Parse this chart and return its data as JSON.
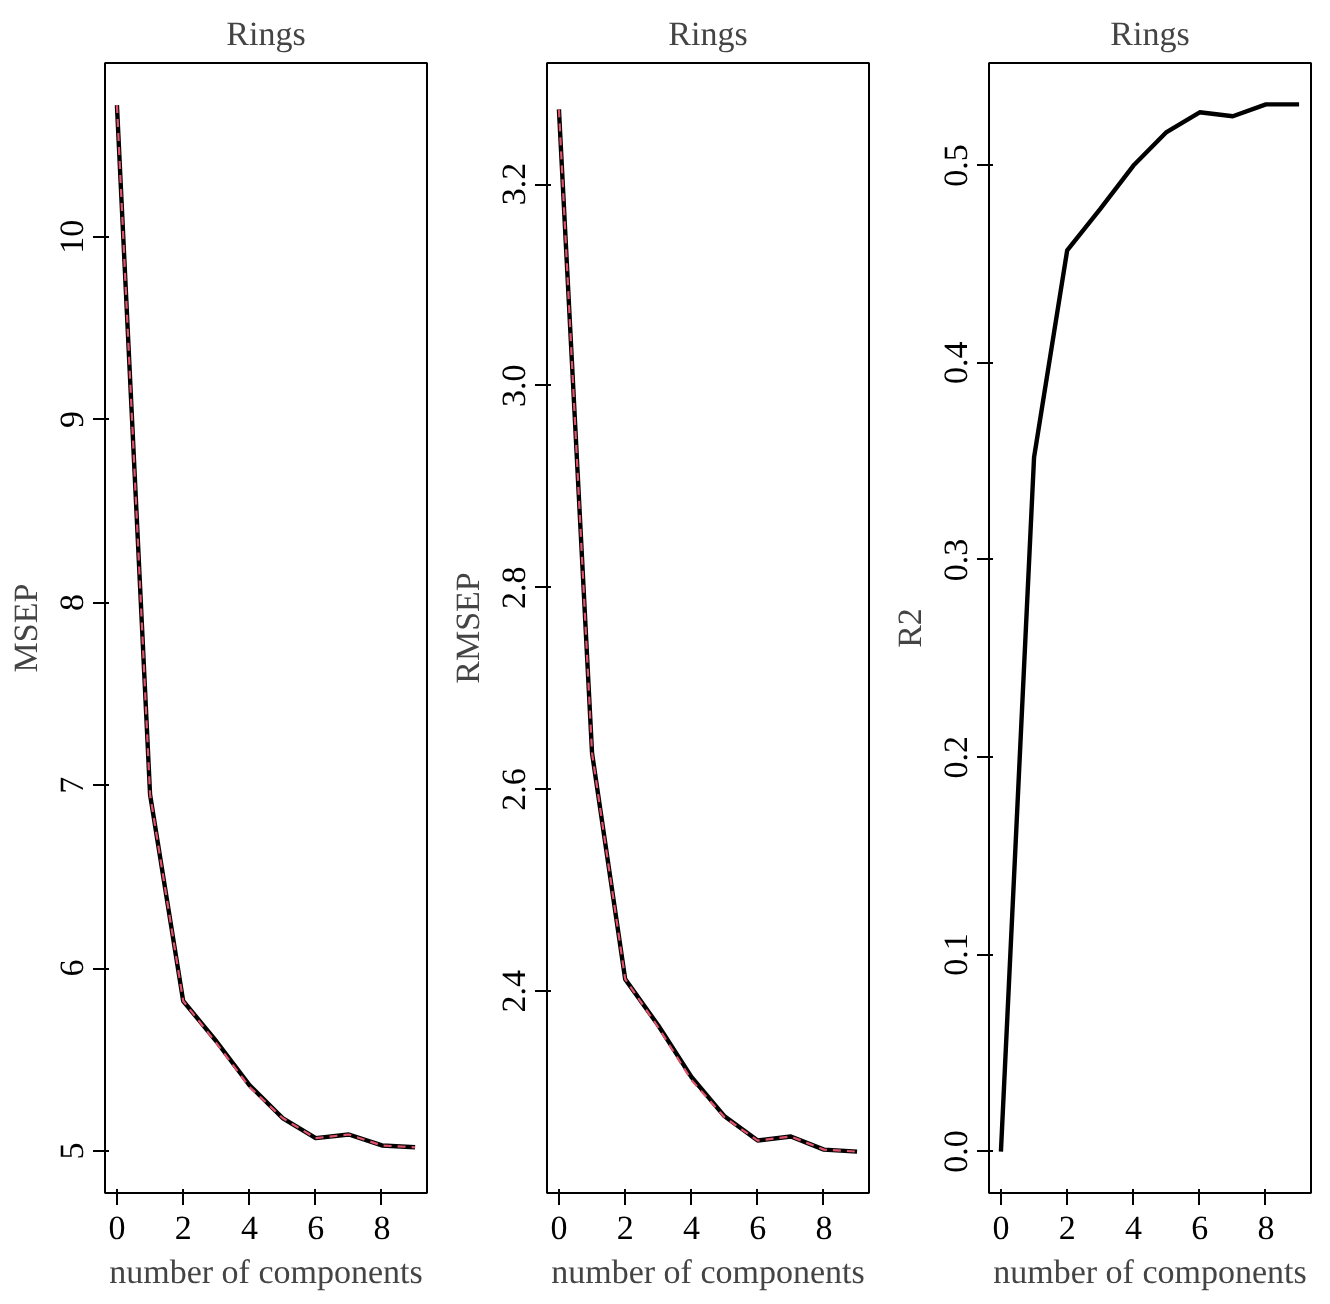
{
  "chart_data": [
    {
      "type": "line",
      "title": "Rings",
      "xlabel": "number of components",
      "ylabel": "MSEP",
      "x": [
        0,
        1,
        2,
        3,
        4,
        5,
        6,
        7,
        8,
        9
      ],
      "xlim": [
        -0.36,
        9.36
      ],
      "xticks": [
        0,
        2,
        4,
        6,
        8
      ],
      "ylim": [
        4.77,
        10.95
      ],
      "yticks": [
        5,
        6,
        7,
        8,
        9,
        10
      ],
      "grid": false,
      "series": [
        {
          "color": "#000000",
          "line_style": "solid",
          "values": [
            10.72,
            6.95,
            5.82,
            5.6,
            5.36,
            5.18,
            5.07,
            5.09,
            5.03,
            5.02
          ]
        },
        {
          "color": "#df536b",
          "line_style": "dashed",
          "values": [
            10.72,
            6.95,
            5.82,
            5.59,
            5.35,
            5.18,
            5.07,
            5.09,
            5.03,
            5.02
          ]
        }
      ]
    },
    {
      "type": "line",
      "title": "Rings",
      "xlabel": "number of components",
      "ylabel": "RMSEP",
      "x": [
        0,
        1,
        2,
        3,
        4,
        5,
        6,
        7,
        8,
        9
      ],
      "xlim": [
        -0.36,
        9.36
      ],
      "xticks": [
        0,
        2,
        4,
        6,
        8
      ],
      "ylim": [
        2.2,
        3.32
      ],
      "yticks": [
        2.4,
        {
          "value": 2.6,
          "label": "2.6"
        },
        {
          "value": 2.8,
          "label": "2.8"
        },
        {
          "value": 3.0,
          "label": "3.0"
        },
        3.2
      ],
      "grid": false,
      "series": [
        {
          "color": "#000000",
          "line_style": "solid",
          "values": [
            3.274,
            2.636,
            2.412,
            2.366,
            2.315,
            2.276,
            2.252,
            2.256,
            2.243,
            2.241
          ]
        },
        {
          "color": "#df536b",
          "line_style": "dashed",
          "values": [
            3.274,
            2.636,
            2.412,
            2.364,
            2.312,
            2.275,
            2.252,
            2.256,
            2.243,
            2.241
          ]
        }
      ]
    },
    {
      "type": "line",
      "title": "Rings",
      "xlabel": "number of components",
      "ylabel": "R2",
      "x": [
        0,
        1,
        2,
        3,
        4,
        5,
        6,
        7,
        8,
        9
      ],
      "xlim": [
        -0.36,
        9.36
      ],
      "xticks": [
        0,
        2,
        4,
        6,
        8
      ],
      "ylim": [
        -0.021,
        0.552
      ],
      "yticks": [
        {
          "value": 0,
          "label": "0.0"
        },
        0.1,
        0.2,
        0.3,
        0.4,
        0.5
      ],
      "grid": false,
      "series": [
        {
          "color": "#000000",
          "line_style": "solid",
          "values": [
            0,
            0.352,
            0.457,
            0.478,
            0.5,
            0.517,
            0.527,
            0.525,
            0.531,
            0.531
          ]
        }
      ]
    }
  ]
}
